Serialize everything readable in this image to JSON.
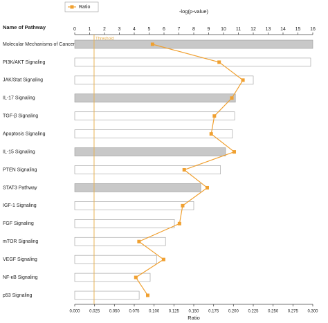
{
  "chart_data": {
    "type": "bar",
    "orientation": "horizontal",
    "category_label": "Name of Pathway",
    "categories": [
      "Molecular Mechanisms of Cancer",
      "PI3K/AKT Signaling",
      "JAK/Stat Signaling",
      "IL-17 Signaling",
      "TGF-β Signaling",
      "Apoptosis Signaling",
      "IL-15 Signaling",
      "PTEN Signaling",
      "STAT3 Pathway",
      "IGF-1 Signaling",
      "FGF Signaling",
      "mTOR Signaling",
      "VEGF Signaling",
      "NF-κB Signaling",
      "p53 Signaling"
    ],
    "values": [
      16,
      15.86,
      12.0,
      10.8,
      10.75,
      10.6,
      10.14,
      9.8,
      8.47,
      8.0,
      6.7,
      6.1,
      5.5,
      5.07,
      4.33
    ],
    "bar_colors": [
      "#c8c8c8",
      "#ffffff",
      "#ffffff",
      "#c8c8c8",
      "#ffffff",
      "#ffffff",
      "#c8c8c8",
      "#ffffff",
      "#c8c8c8",
      "#ffffff",
      "#ffffff",
      "#ffffff",
      "#ffffff",
      "#ffffff",
      "#ffffff"
    ],
    "x_label": "-log(p-value)",
    "xlim": [
      0,
      16
    ],
    "xticks": [
      0,
      1,
      2,
      3,
      4,
      5,
      6,
      7,
      8,
      9,
      10,
      11,
      12,
      13,
      14,
      15,
      16
    ],
    "threshold": {
      "label": "Threshold",
      "value": 1.3,
      "color": "#e8b050"
    },
    "x2_label": "Ratio",
    "x2lim": [
      0,
      0.3
    ],
    "x2ticks": [
      {
        "value": 0,
        "label": "0.000"
      },
      {
        "value": 0.025,
        "label": "0.025"
      },
      {
        "value": 0.05,
        "label": "0.050"
      },
      {
        "value": 0.075,
        "label": "0.075"
      },
      {
        "value": 0.1,
        "label": "0.100"
      },
      {
        "value": 0.125,
        "label": "0.125"
      },
      {
        "value": 0.15,
        "label": "0.150"
      },
      {
        "value": 0.175,
        "label": "0.175"
      },
      {
        "value": 0.2,
        "label": "0.200"
      },
      {
        "value": 0.225,
        "label": "0.225"
      },
      {
        "value": 0.25,
        "label": "0.250"
      },
      {
        "value": 0.275,
        "label": "0.275"
      },
      {
        "value": 0.3,
        "label": "0.300"
      }
    ],
    "series": [
      {
        "name": "Ratio",
        "color": "#f0a030",
        "axis": "x2",
        "values": [
          0.098,
          0.182,
          0.212,
          0.198,
          0.176,
          0.172,
          0.201,
          0.138,
          0.167,
          0.136,
          0.132,
          0.081,
          0.112,
          0.077,
          0.092
        ]
      }
    ]
  }
}
